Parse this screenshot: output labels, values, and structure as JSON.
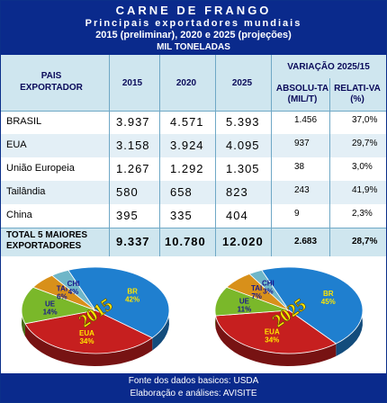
{
  "header": {
    "title": "CARNE DE FRANGO",
    "subtitle": "Principais exportadores mundiais",
    "period": "2015 (preliminar), 2020 e 2025 (projeções)",
    "unit": "MIL TONELADAS"
  },
  "table": {
    "col_country": "PAIS EXPORTADOR",
    "col_2015": "2015",
    "col_2020": "2020",
    "col_2025": "2025",
    "col_variation": "VARIAÇÃO 2025/15",
    "col_absolute": "ABSOLU-TA (MIL/T)",
    "col_relative": "RELATI-VA (%)",
    "rows": [
      {
        "country": "BRASIL",
        "y2015": "3.937",
        "y2020": "4.571",
        "y2025": "5.393",
        "abs": "1.456",
        "rel": "37,0%"
      },
      {
        "country": "EUA",
        "y2015": "3.158",
        "y2020": "3.924",
        "y2025": "4.095",
        "abs": "937",
        "rel": "29,7%"
      },
      {
        "country": "União Europeia",
        "y2015": "1.267",
        "y2020": "1.292",
        "y2025": "1.305",
        "abs": "38",
        "rel": "3,0%"
      },
      {
        "country": "Tailândia",
        "y2015": "580",
        "y2020": "658",
        "y2025": "823",
        "abs": "243",
        "rel": "41,9%"
      },
      {
        "country": "China",
        "y2015": "395",
        "y2020": "335",
        "y2025": "404",
        "abs": "9",
        "rel": "2,3%"
      }
    ],
    "total": {
      "label": "TOTAL 5 MAIORES EXPORTADORES",
      "y2015": "9.337",
      "y2020": "10.780",
      "y2025": "12.020",
      "abs": "2.683",
      "rel": "28,7%"
    }
  },
  "chart_data": [
    {
      "type": "pie",
      "title": "2015",
      "categories": [
        "BR",
        "EUA",
        "UE",
        "TAI",
        "CHI"
      ],
      "values": [
        42,
        34,
        14,
        6,
        4
      ],
      "labels": [
        "42%",
        "34%",
        "14%",
        "6%",
        "4%"
      ],
      "colors": [
        "#1f7fcf",
        "#c61f1f",
        "#7ab82a",
        "#d8901a",
        "#6fb6c8"
      ]
    },
    {
      "type": "pie",
      "title": "2025",
      "categories": [
        "BR",
        "EUA",
        "UE",
        "TAI",
        "CHI"
      ],
      "values": [
        45,
        34,
        11,
        7,
        3
      ],
      "labels": [
        "45%",
        "34%",
        "11%",
        "7%",
        "3%"
      ],
      "colors": [
        "#1f7fcf",
        "#c61f1f",
        "#7ab82a",
        "#d8901a",
        "#6fb6c8"
      ]
    }
  ],
  "footer": {
    "line1": "Fonte dos dados basicos: USDA",
    "line2": "Elaboração e análises: AVISITE"
  }
}
